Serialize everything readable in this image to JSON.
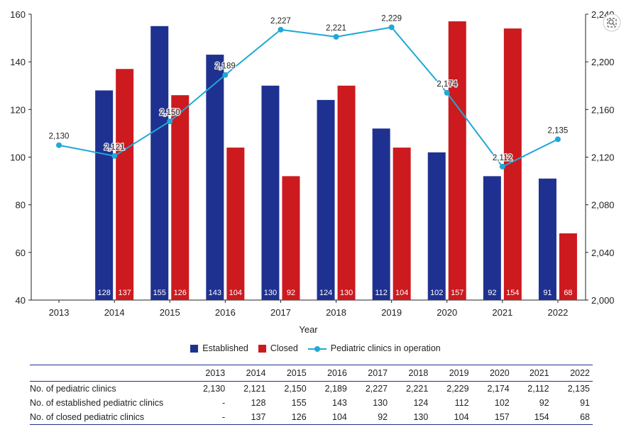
{
  "chart_data": {
    "type": "bar",
    "categories": [
      "2013",
      "2014",
      "2015",
      "2016",
      "2017",
      "2018",
      "2019",
      "2020",
      "2021",
      "2022"
    ],
    "xlabel": "Year",
    "y_left_lim": [
      40,
      160
    ],
    "y_left_ticks": [
      "40",
      "60",
      "80",
      "100",
      "120",
      "140",
      "160"
    ],
    "y_right_lim": [
      2000,
      2240
    ],
    "y_right_ticks": [
      "2,000",
      "2,040",
      "2,080",
      "2,120",
      "2,160",
      "2,200",
      "2,240"
    ],
    "grid": false,
    "legend_position": "bottom",
    "series": [
      {
        "name": "Established",
        "type": "bar",
        "axis": "left",
        "color": "#1f3190",
        "values": [
          null,
          128,
          155,
          143,
          130,
          124,
          112,
          102,
          92,
          91
        ],
        "labels": [
          "",
          "128",
          "155",
          "143",
          "130",
          "124",
          "112",
          "102",
          "92",
          "91"
        ]
      },
      {
        "name": "Closed",
        "type": "bar",
        "axis": "left",
        "color": "#cc1a1f",
        "values": [
          null,
          137,
          126,
          104,
          92,
          130,
          104,
          157,
          154,
          68
        ],
        "labels": [
          "",
          "137",
          "126",
          "104",
          "92",
          "130",
          "104",
          "157",
          "154",
          "68"
        ]
      },
      {
        "name": "Pediatric clinics in operation",
        "type": "line",
        "axis": "right",
        "color": "#1fa8d8",
        "values": [
          2130,
          2121,
          2150,
          2189,
          2227,
          2221,
          2229,
          2174,
          2112,
          2135
        ],
        "labels": [
          "2,130",
          "2,121",
          "2,150",
          "2,189",
          "2,227",
          "2,221",
          "2,229",
          "2,174",
          "2,112",
          "2,135"
        ]
      }
    ]
  },
  "legend": {
    "established": "Established",
    "closed": "Closed",
    "operation": "Pediatric clinics in operation"
  },
  "table": {
    "years": [
      "2013",
      "2014",
      "2015",
      "2016",
      "2017",
      "2018",
      "2019",
      "2020",
      "2021",
      "2022"
    ],
    "rows": [
      {
        "label": "No. of pediatric clinics",
        "values": [
          "2,130",
          "2,121",
          "2,150",
          "2,189",
          "2,227",
          "2,221",
          "2,229",
          "2,174",
          "2,112",
          "2,135"
        ]
      },
      {
        "label": "No. of established pediatric clinics",
        "values": [
          "-",
          "128",
          "155",
          "143",
          "130",
          "124",
          "112",
          "102",
          "92",
          "91"
        ]
      },
      {
        "label": "No. of closed pediatric clinics",
        "values": [
          "-",
          "137",
          "126",
          "104",
          "92",
          "130",
          "104",
          "157",
          "154",
          "68"
        ]
      }
    ]
  },
  "toolbar_icon": "image-search-icon"
}
